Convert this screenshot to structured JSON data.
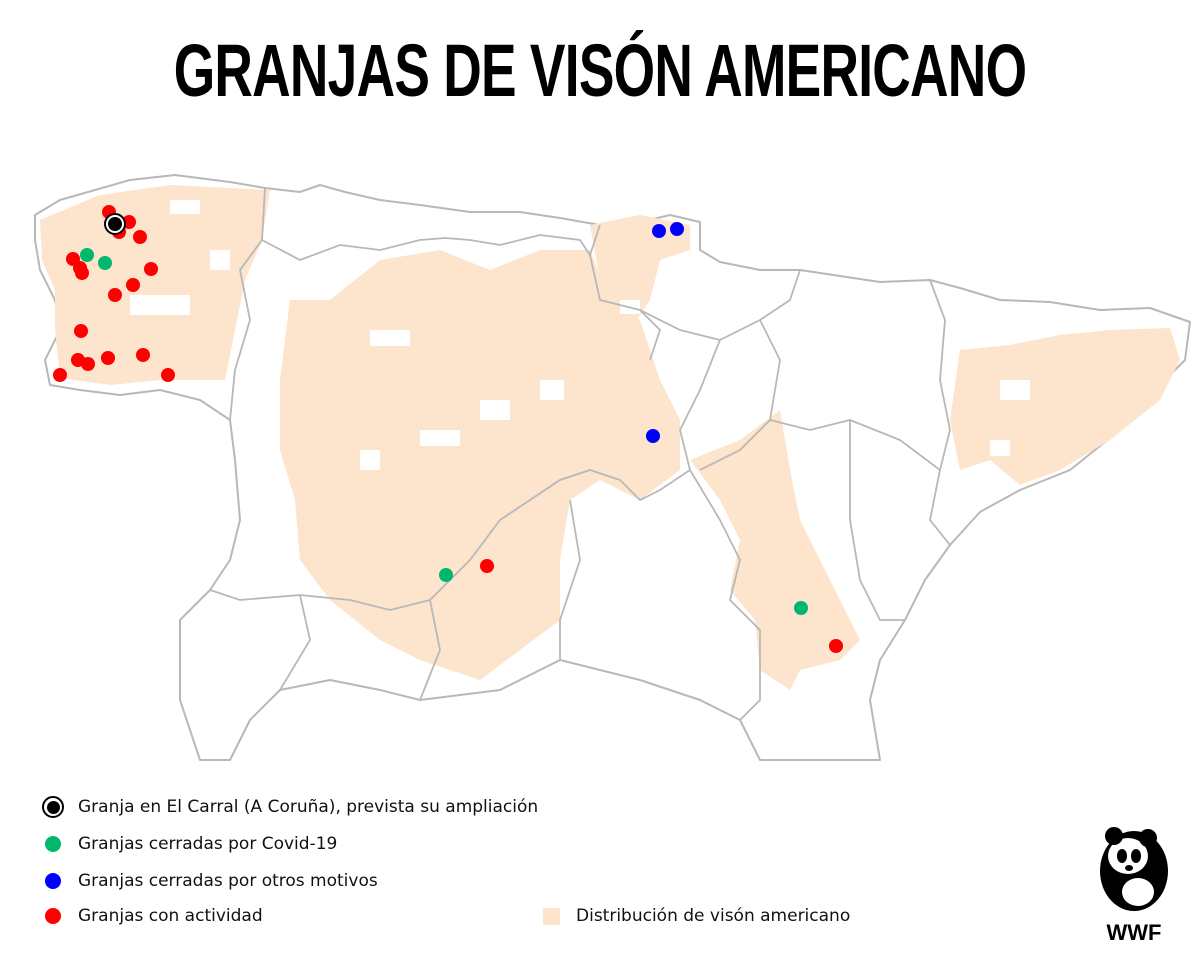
{
  "title": "GRANJAS DE VISÓN AMERICANO",
  "colors": {
    "distribution": "#fde4cc",
    "border": "#b8b8b8",
    "covid_closed": "#00b86b",
    "other_closed": "#0000ff",
    "active": "#ff0000",
    "el_carral": "#000000"
  },
  "legend": {
    "el_carral": "Granja en El Carral (A Coruña), prevista su ampliación",
    "covid": "Granjas cerradas por Covid-19",
    "other": "Granjas cerradas por otros motivos",
    "active": "Granjas con actividad",
    "distribution": "Distribución de visón americano"
  },
  "logo": {
    "text": "WWF"
  }
}
